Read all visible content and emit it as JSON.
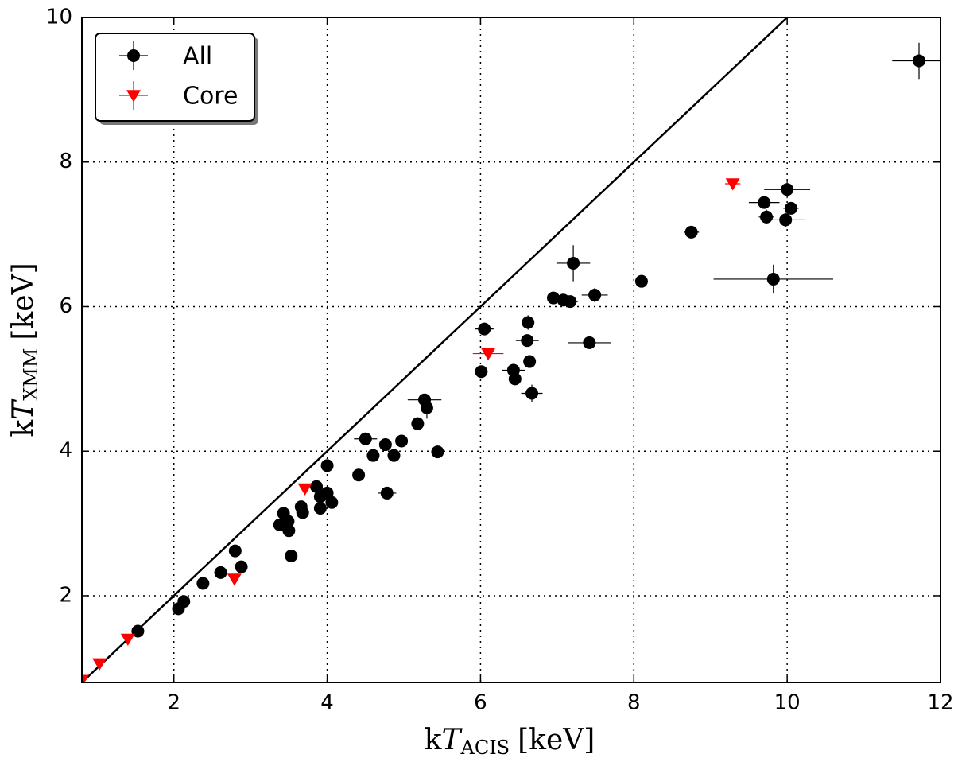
{
  "chart_data": {
    "type": "scatter",
    "xlabel": {
      "prefix": "k",
      "symbol": "T",
      "subscript": "ACIS",
      "unit": "[keV]"
    },
    "ylabel": {
      "prefix": "k",
      "symbol": "T",
      "subscript": "XMM",
      "unit": "[keV]"
    },
    "xlim": [
      0.8,
      12
    ],
    "ylim": [
      0.8,
      10
    ],
    "xticks": [
      2,
      4,
      6,
      8,
      10,
      12
    ],
    "yticks": [
      2,
      4,
      6,
      8,
      10
    ],
    "grid": true,
    "legend": "upper left",
    "series": [
      {
        "name": "All",
        "color": "#000000",
        "marker": "circle",
        "x": [
          11.72,
          10.0,
          9.7,
          10.05,
          9.73,
          9.98,
          8.75,
          9.82,
          8.1,
          7.21,
          7.49,
          6.95,
          7.08,
          7.17,
          6.05,
          6.62,
          6.61,
          7.42,
          6.64,
          6.01,
          6.43,
          6.45,
          6.67,
          5.27,
          5.3,
          5.18,
          5.44,
          4.5,
          4.97,
          4.76,
          4.6,
          4.87,
          4.0,
          4.41,
          4.78,
          3.86,
          4.0,
          3.91,
          4.06,
          3.91,
          3.43,
          3.66,
          3.68,
          3.38,
          3.49,
          3.5,
          3.53,
          2.8,
          2.88,
          2.61,
          2.38,
          2.13,
          2.06,
          1.53
        ],
        "values": [
          9.4,
          7.62,
          7.44,
          7.36,
          7.24,
          7.2,
          7.03,
          6.38,
          6.35,
          6.6,
          6.16,
          6.12,
          6.09,
          6.07,
          5.69,
          5.78,
          5.53,
          5.5,
          5.24,
          5.1,
          5.12,
          5.0,
          4.8,
          4.71,
          4.6,
          4.38,
          3.99,
          4.17,
          4.14,
          4.09,
          3.94,
          3.94,
          3.8,
          3.67,
          3.42,
          3.51,
          3.42,
          3.37,
          3.29,
          3.21,
          3.14,
          3.23,
          3.15,
          2.98,
          3.03,
          2.9,
          2.55,
          2.62,
          2.4,
          2.32,
          2.17,
          1.92,
          1.82,
          1.51
        ],
        "xerr": [
          0.35,
          0.3,
          0.2,
          0.1,
          0.1,
          0.25,
          0.1,
          0.78,
          0.08,
          0.22,
          0.17,
          0.08,
          0.1,
          0.1,
          0.12,
          0.08,
          0.15,
          0.28,
          0.08,
          0.06,
          0.15,
          0.08,
          0.14,
          0.22,
          0.08,
          0.08,
          0.06,
          0.15,
          0.08,
          0.08,
          0.06,
          0.08,
          0.06,
          0.06,
          0.12,
          0.06,
          0.06,
          0.06,
          0.06,
          0.06,
          0.06,
          0.06,
          0.06,
          0.06,
          0.06,
          0.06,
          0.06,
          0.05,
          0.05,
          0.05,
          0.05,
          0.05,
          0.05,
          0.05
        ],
        "yerr": [
          0.25,
          0.12,
          0.08,
          0.08,
          0.1,
          0.1,
          0.06,
          0.2,
          0.06,
          0.25,
          0.1,
          0.06,
          0.06,
          0.06,
          0.08,
          0.1,
          0.08,
          0.06,
          0.08,
          0.06,
          0.08,
          0.08,
          0.12,
          0.08,
          0.15,
          0.08,
          0.06,
          0.06,
          0.06,
          0.08,
          0.06,
          0.06,
          0.08,
          0.06,
          0.08,
          0.06,
          0.06,
          0.06,
          0.06,
          0.06,
          0.06,
          0.06,
          0.06,
          0.06,
          0.06,
          0.06,
          0.06,
          0.06,
          0.06,
          0.05,
          0.05,
          0.05,
          0.05,
          0.05
        ]
      },
      {
        "name": "Core",
        "color": "#ff0000",
        "marker": "triangle-down",
        "x": [
          0.8,
          1.03,
          1.4,
          2.79,
          3.71,
          6.1,
          9.29
        ],
        "values": [
          0.83,
          1.06,
          1.4,
          2.23,
          3.48,
          5.35,
          7.7
        ],
        "xerr": [
          0.05,
          0.05,
          0.05,
          0.05,
          0.05,
          0.2,
          0.1
        ],
        "yerr": [
          0.04,
          0.04,
          0.04,
          0.05,
          0.05,
          0.06,
          0.06
        ]
      }
    ]
  }
}
